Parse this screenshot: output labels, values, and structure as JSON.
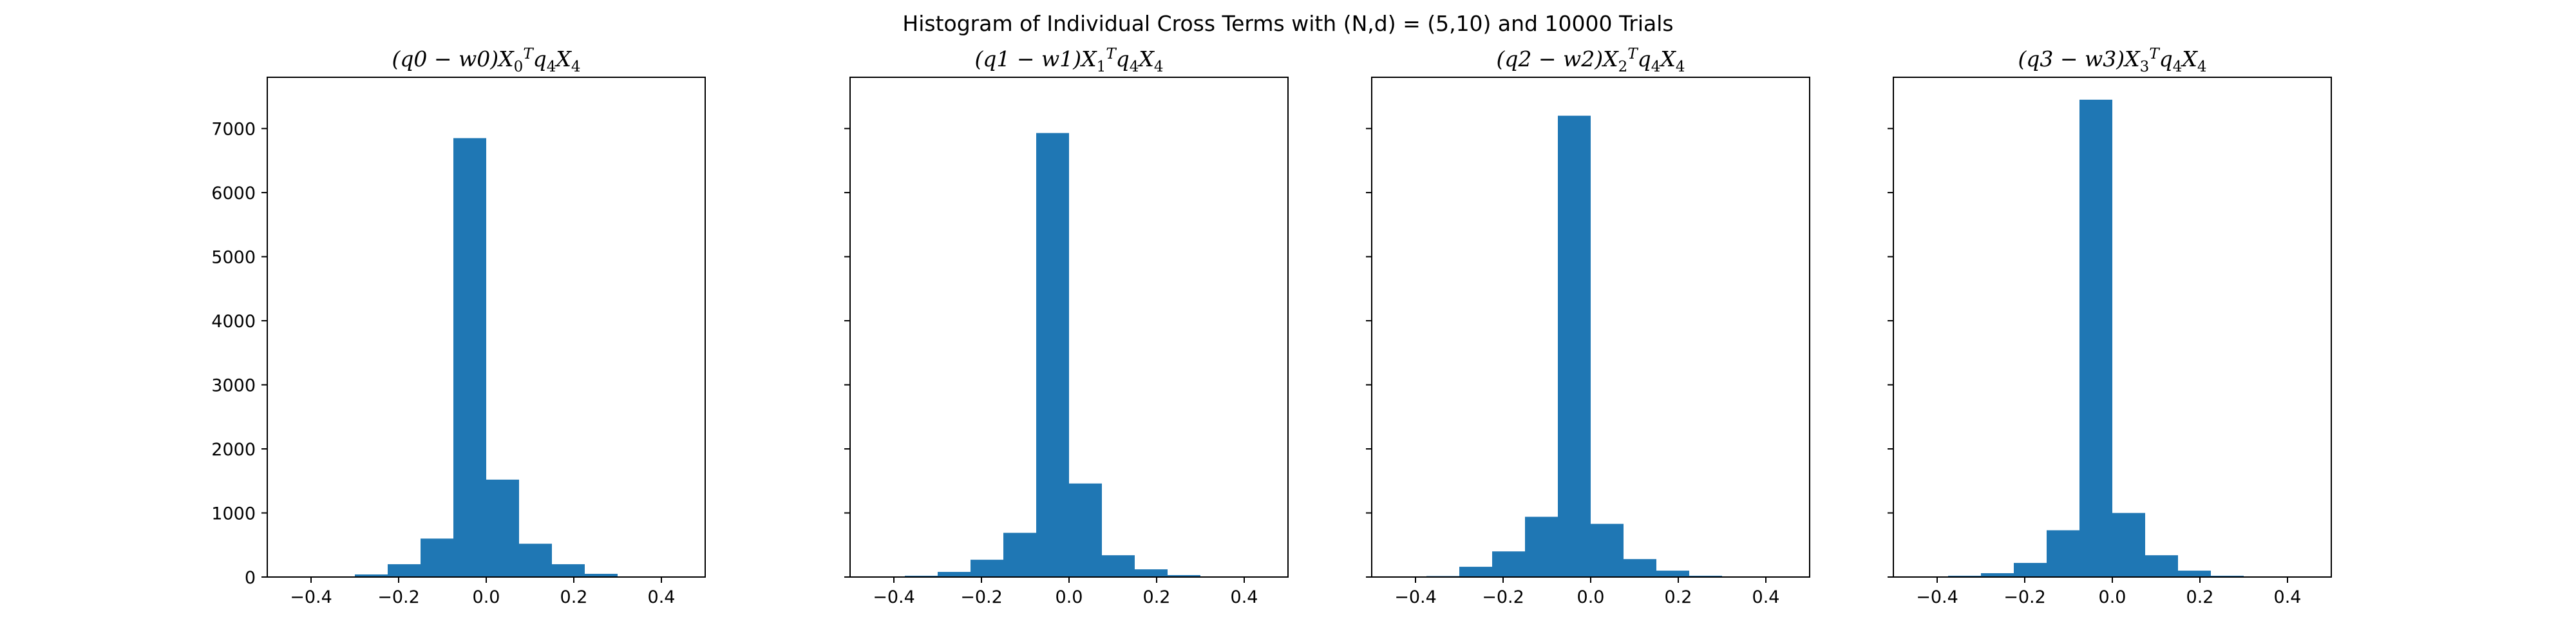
{
  "figure": {
    "suptitle": "Histogram of Individual Cross Terms with (N,d) = (5,10) and 10000 Trials"
  },
  "colors": {
    "bar": "#1f77b4",
    "frame": "#000000"
  },
  "chart_data": [
    {
      "type": "bar",
      "title": "(q0 − w0)X0ᵀq4X4",
      "title_parts": {
        "prefix": "(q0 − w0)X",
        "sub": "0",
        "sup": "T",
        "tail": "q",
        "sub2": "4",
        "tail2": "X",
        "sub3": "4"
      },
      "bin_edges": [
        -0.375,
        -0.3,
        -0.225,
        -0.15,
        -0.075,
        0.0,
        0.075,
        0.15,
        0.225,
        0.3,
        0.375
      ],
      "values": [
        5,
        40,
        200,
        600,
        6850,
        1520,
        520,
        200,
        50,
        10
      ],
      "xlim": [
        -0.5,
        0.5
      ],
      "ylim": [
        0,
        7800
      ],
      "xticks": [
        -0.4,
        -0.2,
        0.0,
        0.2,
        0.4
      ],
      "xtick_labels": [
        "−0.4",
        "−0.2",
        "0.0",
        "0.2",
        "0.4"
      ],
      "yticks": [
        0,
        1000,
        2000,
        3000,
        4000,
        5000,
        6000,
        7000
      ],
      "ytick_labels": [
        "0",
        "1000",
        "2000",
        "3000",
        "4000",
        "5000",
        "6000",
        "7000"
      ],
      "show_ytick_labels": true
    },
    {
      "type": "bar",
      "title": "(q1 − w1)X1ᵀq4X4",
      "title_parts": {
        "prefix": "(q1 − w1)X",
        "sub": "1",
        "sup": "T",
        "tail": "q",
        "sub2": "4",
        "tail2": "X",
        "sub3": "4"
      },
      "bin_edges": [
        -0.375,
        -0.3,
        -0.225,
        -0.15,
        -0.075,
        0.0,
        0.075,
        0.15,
        0.225,
        0.3,
        0.375
      ],
      "values": [
        20,
        80,
        270,
        690,
        6930,
        1460,
        340,
        120,
        30,
        5
      ],
      "xlim": [
        -0.5,
        0.5
      ],
      "ylim": [
        0,
        7800
      ],
      "xticks": [
        -0.4,
        -0.2,
        0.0,
        0.2,
        0.4
      ],
      "xtick_labels": [
        "−0.4",
        "−0.2",
        "0.0",
        "0.2",
        "0.4"
      ],
      "yticks": [
        0,
        1000,
        2000,
        3000,
        4000,
        5000,
        6000,
        7000
      ],
      "ytick_labels": [],
      "show_ytick_labels": false
    },
    {
      "type": "bar",
      "title": "(q2 − w2)X2ᵀq4X4",
      "title_parts": {
        "prefix": "(q2 − w2)X",
        "sub": "2",
        "sup": "T",
        "tail": "q",
        "sub2": "4",
        "tail2": "X",
        "sub3": "4"
      },
      "bin_edges": [
        -0.375,
        -0.3,
        -0.225,
        -0.15,
        -0.075,
        0.0,
        0.075,
        0.15,
        0.225,
        0.3,
        0.375
      ],
      "values": [
        15,
        160,
        400,
        940,
        7200,
        830,
        280,
        100,
        20,
        5
      ],
      "xlim": [
        -0.5,
        0.5
      ],
      "ylim": [
        0,
        7800
      ],
      "xticks": [
        -0.4,
        -0.2,
        0.0,
        0.2,
        0.4
      ],
      "xtick_labels": [
        "−0.4",
        "−0.2",
        "0.0",
        "0.2",
        "0.4"
      ],
      "yticks": [
        0,
        1000,
        2000,
        3000,
        4000,
        5000,
        6000,
        7000
      ],
      "ytick_labels": [],
      "show_ytick_labels": false
    },
    {
      "type": "bar",
      "title": "(q3 − w3)X3ᵀq4X4",
      "title_parts": {
        "prefix": "(q3 − w3)X",
        "sub": "3",
        "sup": "T",
        "tail": "q",
        "sub2": "4",
        "tail2": "X",
        "sub3": "4"
      },
      "bin_edges": [
        -0.375,
        -0.3,
        -0.225,
        -0.15,
        -0.075,
        0.0,
        0.075,
        0.15,
        0.225,
        0.3,
        0.375
      ],
      "values": [
        20,
        60,
        220,
        730,
        7450,
        1000,
        340,
        100,
        20,
        5
      ],
      "xlim": [
        -0.5,
        0.5
      ],
      "ylim": [
        0,
        7800
      ],
      "xticks": [
        -0.4,
        -0.2,
        0.0,
        0.2,
        0.4
      ],
      "xtick_labels": [
        "−0.4",
        "−0.2",
        "0.0",
        "0.2",
        "0.4"
      ],
      "yticks": [
        0,
        1000,
        2000,
        3000,
        4000,
        5000,
        6000,
        7000
      ],
      "ytick_labels": [],
      "show_ytick_labels": false
    }
  ]
}
